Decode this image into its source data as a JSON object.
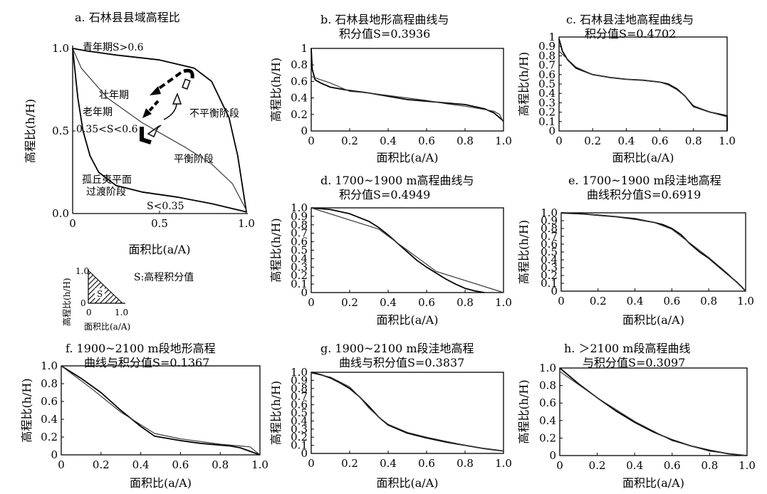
{
  "chart_data": [
    {
      "id": "a",
      "type": "line",
      "title": "a. 石林县县域高程比",
      "xlabel": "面积比(a/A)",
      "ylabel": "高程比(h/H)",
      "xlim": [
        0,
        1
      ],
      "ylim": [
        0,
        1
      ],
      "xticks": [
        "0",
        "0.5",
        "1.0"
      ],
      "yticks": [
        "0.0",
        "0.5",
        "1.0"
      ],
      "series": [
        {
          "x": [
            0,
            0.08,
            0.25,
            0.5,
            0.7,
            0.8,
            0.9,
            0.95,
            1.0
          ],
          "y": [
            1,
            0.985,
            0.96,
            0.93,
            0.88,
            0.8,
            0.58,
            0.35,
            0.01
          ]
        },
        {
          "x": [
            0,
            0.05,
            0.2,
            0.4,
            0.55,
            0.65,
            0.8,
            0.92,
            1.0
          ],
          "y": [
            1,
            0.88,
            0.7,
            0.55,
            0.46,
            0.4,
            0.3,
            0.18,
            0.02
          ]
        },
        {
          "x": [
            0,
            0.03,
            0.06,
            0.1,
            0.15,
            0.25,
            0.4,
            0.6,
            0.8,
            1.0
          ],
          "y": [
            1,
            0.7,
            0.5,
            0.35,
            0.25,
            0.17,
            0.13,
            0.1,
            0.06,
            0.01
          ]
        }
      ],
      "annotations": [
        "青年期S>0.6",
        "壮年期",
        "老年期",
        "0.35<S<0.6",
        "不平衡阶段",
        "平衡阶段",
        "孤丘夷平面",
        "过渡阶段",
        "S<0.35"
      ],
      "inset": {
        "ylabel": "高程比(h/H)",
        "xlabel": "面积比(a/A)",
        "y1": "1.0",
        "x0": "0",
        "x1": "1.0",
        "origin": "0",
        "area_label": "S",
        "legend_text": "S:高程积分值"
      }
    },
    {
      "id": "b",
      "type": "line",
      "title_lines": [
        "b. 石林县地形高程曲线与",
        "积分值S=0.3936"
      ],
      "xlabel": "面积比(a/A)",
      "ylabel": "高程比(h/H)",
      "xlim": [
        0,
        1
      ],
      "ylim": [
        0,
        1
      ],
      "xticks": [
        "0",
        "0.2",
        "0.4",
        "0.6",
        "0.8",
        "1.0"
      ],
      "yticks": [
        "0",
        "0.2",
        "0.4",
        "0.6",
        "0.8",
        "1"
      ],
      "series": [
        {
          "x": [
            0,
            0.005,
            0.02,
            0.05,
            0.1,
            0.2,
            0.3,
            0.4,
            0.5,
            0.6,
            0.7,
            0.8,
            0.9,
            0.95,
            0.98,
            1.0
          ],
          "y": [
            1,
            0.75,
            0.62,
            0.58,
            0.53,
            0.49,
            0.46,
            0.42,
            0.38,
            0.36,
            0.34,
            0.32,
            0.27,
            0.22,
            0.16,
            0.12
          ]
        },
        {
          "x": [
            0,
            0.05,
            0.1,
            0.15,
            0.2,
            0.3,
            0.4,
            0.5,
            0.6,
            0.7,
            0.8,
            0.9,
            0.95,
            0.98,
            1.0
          ],
          "y": [
            0.66,
            0.62,
            0.58,
            0.53,
            0.48,
            0.46,
            0.43,
            0.4,
            0.37,
            0.33,
            0.3,
            0.26,
            0.24,
            0.2,
            0.1
          ]
        }
      ]
    },
    {
      "id": "c",
      "type": "line",
      "title_lines": [
        "c. 石林县洼地高程曲线与",
        "积分值S=0.4702"
      ],
      "xlabel": "面积比(a/A)",
      "ylabel": "高程比(h/H)",
      "xlim": [
        0,
        1
      ],
      "ylim": [
        0,
        1
      ],
      "xticks": [
        "0",
        "0.2",
        "0.4",
        "0.6",
        "0.8",
        "1.0"
      ],
      "yticks": [
        "0",
        "0.1",
        "0.2",
        "0.3",
        "0.4",
        "0.5",
        "0.6",
        "0.7",
        "0.8",
        "0.9",
        "1"
      ],
      "series": [
        {
          "x": [
            0,
            0.02,
            0.05,
            0.1,
            0.2,
            0.3,
            0.4,
            0.5,
            0.6,
            0.65,
            0.7,
            0.75,
            0.8,
            0.9,
            0.98,
            1.0,
            1.0
          ],
          "y": [
            0.98,
            0.85,
            0.76,
            0.67,
            0.6,
            0.57,
            0.55,
            0.54,
            0.52,
            0.5,
            0.45,
            0.37,
            0.26,
            0.2,
            0.17,
            0.16,
            0
          ]
        },
        {
          "x": [
            0,
            0.1,
            0.2,
            0.3,
            0.4,
            0.5,
            0.6,
            0.65,
            0.7,
            0.75,
            0.8,
            0.9,
            1.0
          ],
          "y": [
            0.85,
            0.68,
            0.6,
            0.57,
            0.55,
            0.54,
            0.52,
            0.49,
            0.44,
            0.37,
            0.27,
            0.2,
            0.15
          ]
        }
      ]
    },
    {
      "id": "d",
      "type": "line",
      "title_lines": [
        "d. 1700~1900 m高程曲线与",
        "积分值S=0.4949"
      ],
      "xlabel": "面积比(a/A)",
      "ylabel": "高程比(h/H)",
      "xlim": [
        0,
        1
      ],
      "ylim": [
        0,
        1
      ],
      "xticks": [
        "0",
        "0.2",
        "0.4",
        "0.6",
        "0.8",
        "1.0"
      ],
      "yticks": [
        "0",
        "0.1",
        "0.2",
        "0.3",
        "0.4",
        "0.5",
        "0.6",
        "0.7",
        "0.8",
        "0.9",
        "1.0"
      ],
      "series": [
        {
          "x": [
            0,
            0.1,
            0.2,
            0.3,
            0.35,
            0.4,
            0.45,
            0.5,
            0.55,
            0.6,
            0.65,
            0.7,
            0.75,
            0.8,
            0.85,
            0.9
          ],
          "y": [
            1,
            0.98,
            0.93,
            0.84,
            0.77,
            0.68,
            0.58,
            0.48,
            0.38,
            0.3,
            0.23,
            0.16,
            0.1,
            0.05,
            0.02,
            0
          ]
        },
        {
          "x": [
            0,
            0.35,
            0.5,
            0.65,
            1.0
          ],
          "y": [
            1.0,
            0.75,
            0.5,
            0.25,
            0
          ]
        }
      ]
    },
    {
      "id": "e",
      "type": "line",
      "title_lines": [
        "e. 1700~1900 m段洼地高程",
        "曲线积分值S=0.6919"
      ],
      "xlabel": "面积比(a/A)",
      "ylabel": "高程比(h/H)",
      "xlim": [
        0,
        1
      ],
      "ylim": [
        0,
        1
      ],
      "xticks": [
        "0",
        "0.2",
        "0.4",
        "0.6",
        "0.8",
        "1.0"
      ],
      "yticks": [
        "0",
        "0.1",
        "0.2",
        "0.3",
        "0.4",
        "0.5",
        "0.6",
        "0.7",
        "0.8",
        "0.9",
        "1.0"
      ],
      "series": [
        {
          "x": [
            0,
            0.1,
            0.2,
            0.3,
            0.4,
            0.5,
            0.55,
            0.6,
            0.65,
            0.7,
            0.75,
            0.8,
            0.85,
            0.9,
            0.95,
            0.98,
            1.0
          ],
          "y": [
            1,
            0.99,
            0.97,
            0.95,
            0.92,
            0.88,
            0.85,
            0.8,
            0.72,
            0.6,
            0.5,
            0.42,
            0.32,
            0.22,
            0.12,
            0.05,
            0
          ]
        },
        {
          "x": [
            0,
            0.2,
            0.4,
            0.5,
            0.6,
            0.7,
            0.8,
            0.9,
            1.0
          ],
          "y": [
            0.995,
            0.975,
            0.93,
            0.88,
            0.79,
            0.61,
            0.43,
            0.23,
            0
          ]
        }
      ]
    },
    {
      "id": "f",
      "type": "line",
      "title_lines": [
        "f. 1900~2100 m段地形高程",
        "曲线与积分值S=0.1367"
      ],
      "xlabel": "面积比(a/A)",
      "ylabel": "高程比(h/H)",
      "xlim": [
        0,
        1
      ],
      "ylim": [
        0,
        1
      ],
      "xticks": [
        "0",
        "0.2",
        "0.4",
        "0.6",
        "0.8",
        "1.0"
      ],
      "yticks": [
        "0",
        "0.2",
        "0.4",
        "0.6",
        "0.8",
        "1.0"
      ],
      "series": [
        {
          "x": [
            0,
            0.1,
            0.2,
            0.3,
            0.4,
            0.47,
            0.6,
            0.7,
            0.8,
            0.85,
            0.9,
            0.95,
            1.0
          ],
          "y": [
            1,
            0.86,
            0.7,
            0.5,
            0.32,
            0.21,
            0.16,
            0.13,
            0.11,
            0.1,
            0.08,
            0.04,
            0
          ]
        },
        {
          "x": [
            0,
            0.15,
            0.3,
            0.47,
            0.6,
            0.8,
            0.9,
            0.95,
            1.0
          ],
          "y": [
            1,
            0.75,
            0.48,
            0.24,
            0.18,
            0.12,
            0.1,
            0.09,
            0
          ]
        }
      ]
    },
    {
      "id": "g",
      "type": "line",
      "title_lines": [
        "g. 1900~2100 m段洼地高程",
        "曲线与积分值S=0.3837"
      ],
      "xlabel": "面积比(a/A)",
      "ylabel": "高程比(h/H)",
      "xlim": [
        0,
        1
      ],
      "ylim": [
        0,
        1
      ],
      "xticks": [
        "0",
        "0.2",
        "0.4",
        "0.6",
        "0.8",
        "1.0"
      ],
      "yticks": [
        "0",
        "0.1",
        "0.2",
        "0.3",
        "0.4",
        "0.5",
        "0.6",
        "0.7",
        "0.8",
        "0.9",
        "1.0"
      ],
      "series": [
        {
          "x": [
            0,
            0.05,
            0.1,
            0.15,
            0.2,
            0.25,
            0.3,
            0.35,
            0.4,
            0.5,
            0.6,
            0.7,
            0.8,
            0.9,
            1.0
          ],
          "y": [
            1,
            0.97,
            0.93,
            0.87,
            0.8,
            0.7,
            0.58,
            0.45,
            0.35,
            0.25,
            0.19,
            0.14,
            0.1,
            0.06,
            0.03
          ]
        },
        {
          "x": [
            0,
            0.1,
            0.2,
            0.25,
            0.3,
            0.35,
            0.4,
            0.5,
            0.6,
            0.7,
            0.8,
            0.9,
            1.0
          ],
          "y": [
            0.99,
            0.94,
            0.82,
            0.7,
            0.56,
            0.45,
            0.36,
            0.26,
            0.2,
            0.15,
            0.1,
            0.06,
            0.03
          ]
        }
      ]
    },
    {
      "id": "h",
      "type": "line",
      "title_lines": [
        "h. ＞2100 m段高程曲线",
        "与积分值S=0.3097"
      ],
      "xlabel": "面积比(a/A)",
      "ylabel": "高程比(h/H)",
      "xlim": [
        0,
        1
      ],
      "ylim": [
        0,
        1
      ],
      "xticks": [
        "0",
        "0.2",
        "0.4",
        "0.6",
        "0.8",
        "1.0"
      ],
      "yticks": [
        "0",
        "0.2",
        "0.4",
        "0.6",
        "0.8",
        "1.0"
      ],
      "series": [
        {
          "x": [
            0,
            0.1,
            0.2,
            0.3,
            0.4,
            0.5,
            0.6,
            0.7,
            0.8,
            0.9,
            1.0
          ],
          "y": [
            1,
            0.82,
            0.66,
            0.51,
            0.38,
            0.27,
            0.18,
            0.11,
            0.06,
            0.02,
            0
          ]
        },
        {
          "x": [
            0,
            0.2,
            0.4,
            0.6,
            0.8,
            1.0
          ],
          "y": [
            0.96,
            0.66,
            0.39,
            0.17,
            0.05,
            0
          ]
        }
      ]
    }
  ]
}
